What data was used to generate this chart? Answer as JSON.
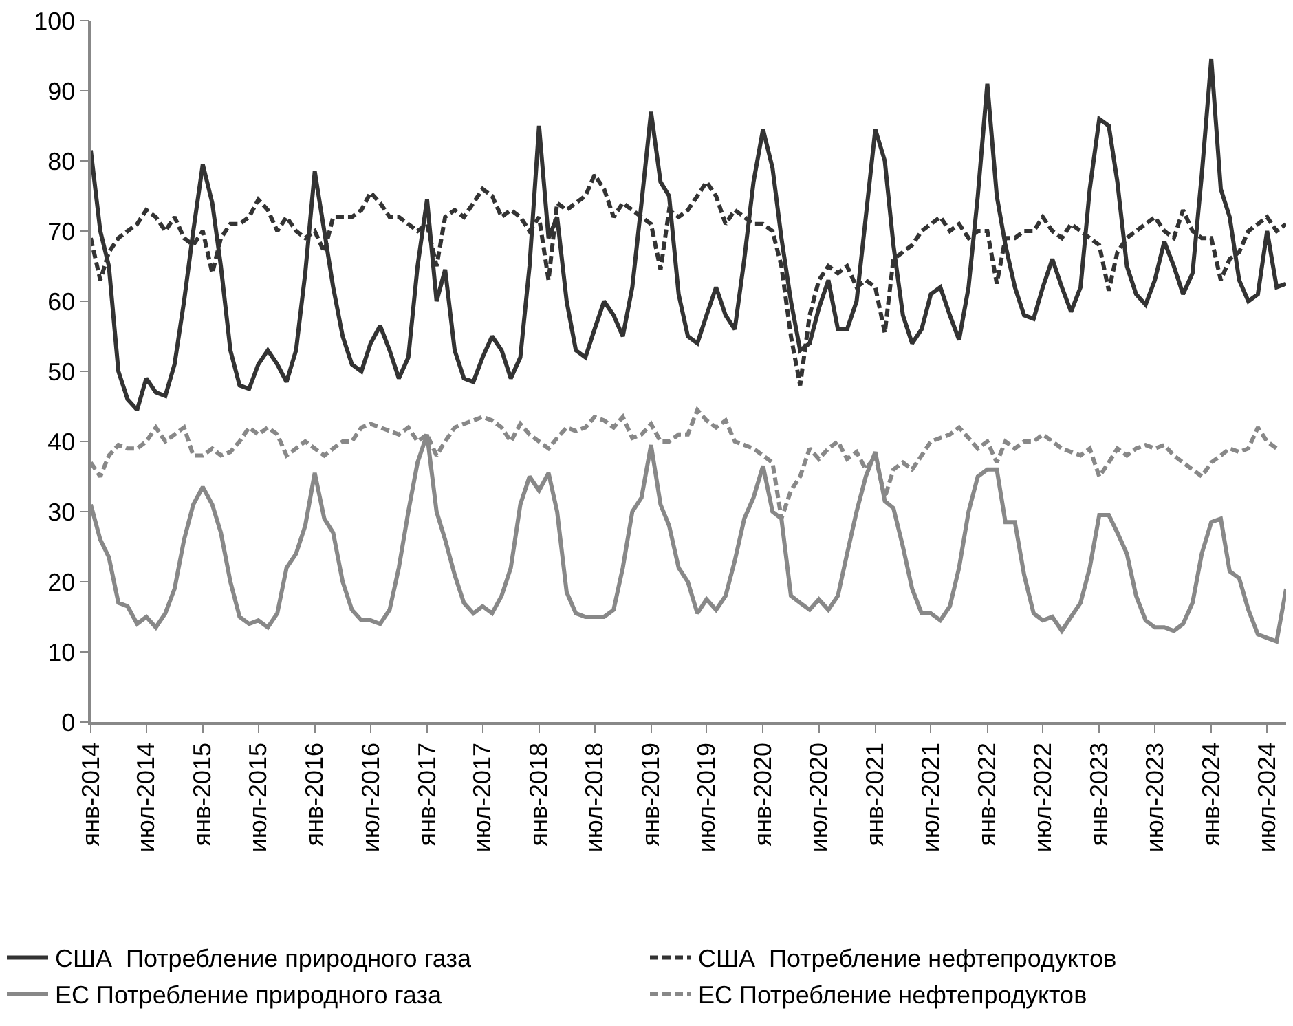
{
  "chart_data": {
    "type": "line",
    "x": [
      "2014-01",
      "2014-02",
      "2014-03",
      "2014-04",
      "2014-05",
      "2014-06",
      "2014-07",
      "2014-08",
      "2014-09",
      "2014-10",
      "2014-11",
      "2014-12",
      "2015-01",
      "2015-02",
      "2015-03",
      "2015-04",
      "2015-05",
      "2015-06",
      "2015-07",
      "2015-08",
      "2015-09",
      "2015-10",
      "2015-11",
      "2015-12",
      "2016-01",
      "2016-02",
      "2016-03",
      "2016-04",
      "2016-05",
      "2016-06",
      "2016-07",
      "2016-08",
      "2016-09",
      "2016-10",
      "2016-11",
      "2016-12",
      "2017-01",
      "2017-02",
      "2017-03",
      "2017-04",
      "2017-05",
      "2017-06",
      "2017-07",
      "2017-08",
      "2017-09",
      "2017-10",
      "2017-11",
      "2017-12",
      "2018-01",
      "2018-02",
      "2018-03",
      "2018-04",
      "2018-05",
      "2018-06",
      "2018-07",
      "2018-08",
      "2018-09",
      "2018-10",
      "2018-11",
      "2018-12",
      "2019-01",
      "2019-02",
      "2019-03",
      "2019-04",
      "2019-05",
      "2019-06",
      "2019-07",
      "2019-08",
      "2019-09",
      "2019-10",
      "2019-11",
      "2019-12",
      "2020-01",
      "2020-02",
      "2020-03",
      "2020-04",
      "2020-05",
      "2020-06",
      "2020-07",
      "2020-08",
      "2020-09",
      "2020-10",
      "2020-11",
      "2020-12",
      "2021-01",
      "2021-02",
      "2021-03",
      "2021-04",
      "2021-05",
      "2021-06",
      "2021-07",
      "2021-08",
      "2021-09",
      "2021-10",
      "2021-11",
      "2021-12",
      "2022-01",
      "2022-02",
      "2022-03",
      "2022-04",
      "2022-05",
      "2022-06",
      "2022-07",
      "2022-08",
      "2022-09",
      "2022-10",
      "2022-11",
      "2022-12",
      "2023-01",
      "2023-02",
      "2023-03",
      "2023-04",
      "2023-05",
      "2023-06",
      "2023-07",
      "2023-08",
      "2023-09",
      "2023-10",
      "2023-11",
      "2023-12",
      "2024-01",
      "2024-02",
      "2024-03",
      "2024-04",
      "2024-05",
      "2024-06",
      "2024-07",
      "2024-08",
      "2024-09"
    ],
    "series": [
      {
        "name": "США  Потребление природного газа",
        "color": "#333333",
        "line_style": "solid",
        "values": [
          81.5,
          70,
          65,
          50,
          46,
          44.5,
          49,
          47,
          46.5,
          51,
          60,
          70,
          79.5,
          74,
          65,
          53,
          48,
          47.5,
          51,
          53,
          51,
          48.5,
          53,
          64,
          78.5,
          70,
          62,
          55,
          51,
          50,
          54,
          56.5,
          53,
          49,
          52,
          65,
          74.5,
          60,
          64.5,
          53,
          49,
          48.5,
          52,
          55,
          53,
          49,
          52,
          65,
          85,
          69,
          72,
          60,
          53,
          52,
          56,
          60,
          58,
          55,
          62,
          74,
          87,
          77,
          75,
          61,
          55,
          54,
          58,
          62,
          58,
          56,
          66,
          77,
          84.5,
          79,
          69,
          60,
          53,
          54,
          59,
          63,
          56,
          56,
          60,
          72,
          84.5,
          80,
          68,
          58,
          54,
          56,
          61,
          62,
          58,
          54.5,
          62,
          75,
          91,
          75,
          68,
          62,
          58,
          57.5,
          62,
          66,
          62,
          58.5,
          62,
          76,
          86,
          85,
          77,
          65,
          61,
          59.5,
          63,
          68.5,
          65,
          61,
          64,
          78,
          94.5,
          76,
          72,
          63,
          60,
          61,
          70,
          62,
          62.5
        ]
      },
      {
        "name": "США  Потребление нефтепродуктов",
        "color": "#333333",
        "line_style": "dashed",
        "values": [
          69,
          63,
          67,
          69,
          70,
          71,
          73,
          72,
          70,
          72,
          69,
          68,
          70,
          64,
          69,
          71,
          71,
          72,
          74.5,
          73,
          70,
          72,
          70,
          69,
          70,
          67,
          72,
          72,
          72,
          73,
          75.5,
          74,
          72,
          72,
          71,
          70,
          71,
          65,
          72,
          73,
          72,
          74,
          76,
          75,
          72,
          73,
          72,
          70,
          72,
          63,
          74,
          73,
          74,
          75,
          78,
          76,
          72,
          74,
          73,
          72,
          71,
          64.5,
          73,
          72,
          73,
          75,
          77,
          75,
          71,
          73,
          72,
          71,
          71,
          70,
          65,
          55,
          48,
          58,
          63,
          65,
          64,
          65,
          62,
          63,
          62,
          55.5,
          66,
          67,
          68,
          70,
          71,
          72,
          70,
          71,
          69,
          70,
          70,
          62.5,
          69,
          69,
          70,
          70,
          72,
          70,
          69,
          71,
          70,
          69,
          68,
          61.5,
          67,
          69,
          70,
          71,
          72,
          70,
          69,
          73,
          70,
          69,
          69,
          63,
          66,
          67,
          70,
          71,
          72,
          70,
          71
        ]
      },
      {
        "name": "ЕС Потребление природного газа",
        "color": "#888888",
        "line_style": "solid",
        "values": [
          31,
          26,
          23.5,
          17,
          16.5,
          14,
          15,
          13.5,
          15.5,
          19,
          26,
          31,
          33.5,
          31,
          27,
          20,
          15,
          14,
          14.5,
          13.5,
          15.5,
          22,
          24,
          28,
          35.5,
          29,
          27,
          20,
          16,
          14.5,
          14.5,
          14,
          16,
          22,
          30,
          37,
          41,
          30,
          26,
          21,
          17,
          15.5,
          16.5,
          15.5,
          18,
          22,
          31,
          35,
          33,
          35.5,
          30,
          18.5,
          15.5,
          15,
          15,
          15,
          16,
          22,
          30,
          32,
          39.5,
          31,
          28,
          22,
          20,
          15.5,
          17.5,
          16,
          18,
          23,
          29,
          32,
          36.5,
          30,
          29,
          18,
          17,
          16,
          17.5,
          16,
          18,
          24,
          30,
          35,
          38.5,
          31.5,
          30.5,
          25,
          19,
          15.5,
          15.5,
          14.5,
          16.5,
          22,
          30,
          35,
          36,
          36,
          28.5,
          28.5,
          21,
          15.5,
          14.5,
          15,
          13,
          15,
          17,
          22,
          29.5,
          29.5,
          27,
          24,
          18,
          14.5,
          13.5,
          13.5,
          13,
          14,
          17,
          24,
          28.5,
          29,
          21.5,
          20.5,
          16,
          12.5,
          12,
          11.5,
          19
        ]
      },
      {
        "name": "ЕС Потребление нефтепродуктов",
        "color": "#888888",
        "line_style": "dashed",
        "values": [
          37,
          35,
          38,
          39.5,
          39,
          39,
          40,
          42,
          40,
          41,
          42,
          38,
          38,
          39,
          38,
          38.5,
          40,
          42,
          41,
          42,
          41,
          38,
          39,
          40,
          39,
          38,
          39,
          40,
          40,
          42,
          42.5,
          42,
          41.5,
          41,
          42,
          40,
          41,
          38,
          40,
          42,
          42.5,
          43,
          43.5,
          43,
          42,
          40,
          42.5,
          41,
          40,
          39,
          40.5,
          42,
          41.5,
          42,
          43.5,
          43,
          42,
          43.5,
          40.5,
          41,
          42.5,
          40,
          40,
          41,
          41,
          44.5,
          43,
          42,
          43,
          40,
          39.5,
          39,
          38,
          37,
          29,
          33,
          35,
          39,
          37.5,
          39,
          40,
          37.5,
          38.5,
          36,
          38,
          32,
          36,
          37,
          36,
          38,
          40,
          40.5,
          41,
          42,
          40.5,
          39,
          40,
          37,
          40,
          39,
          40,
          40,
          41,
          40,
          39,
          38.5,
          38,
          39,
          35,
          37,
          39,
          38,
          39,
          39.5,
          39,
          39.5,
          38,
          37,
          36,
          35,
          37,
          38,
          39,
          38.5,
          39,
          42,
          40,
          39,
          null
        ]
      }
    ],
    "xlim": [
      "2014-01",
      "2024-09"
    ],
    "xticks": [
      {
        "value": "2014-01",
        "label": "янв-2014"
      },
      {
        "value": "2014-07",
        "label": "июл-2014"
      },
      {
        "value": "2015-01",
        "label": "янв-2015"
      },
      {
        "value": "2015-07",
        "label": "июл-2015"
      },
      {
        "value": "2016-01",
        "label": "янв-2016"
      },
      {
        "value": "2016-07",
        "label": "июл-2016"
      },
      {
        "value": "2017-01",
        "label": "янв-2017"
      },
      {
        "value": "2017-07",
        "label": "июл-2017"
      },
      {
        "value": "2018-01",
        "label": "янв-2018"
      },
      {
        "value": "2018-07",
        "label": "июл-2018"
      },
      {
        "value": "2019-01",
        "label": "янв-2019"
      },
      {
        "value": "2019-07",
        "label": "июл-2019"
      },
      {
        "value": "2020-01",
        "label": "янв-2020"
      },
      {
        "value": "2020-07",
        "label": "июл-2020"
      },
      {
        "value": "2021-01",
        "label": "янв-2021"
      },
      {
        "value": "2021-07",
        "label": "июл-2021"
      },
      {
        "value": "2022-01",
        "label": "янв-2022"
      },
      {
        "value": "2022-07",
        "label": "июл-2022"
      },
      {
        "value": "2023-01",
        "label": "янв-2023"
      },
      {
        "value": "2023-07",
        "label": "июл-2023"
      },
      {
        "value": "2024-01",
        "label": "янв-2024"
      },
      {
        "value": "2024-07",
        "label": "июл-2024"
      }
    ],
    "ylim": [
      0,
      100
    ],
    "yticks": [
      0,
      10,
      20,
      30,
      40,
      50,
      60,
      70,
      80,
      90,
      100
    ],
    "legend": "bottom"
  }
}
